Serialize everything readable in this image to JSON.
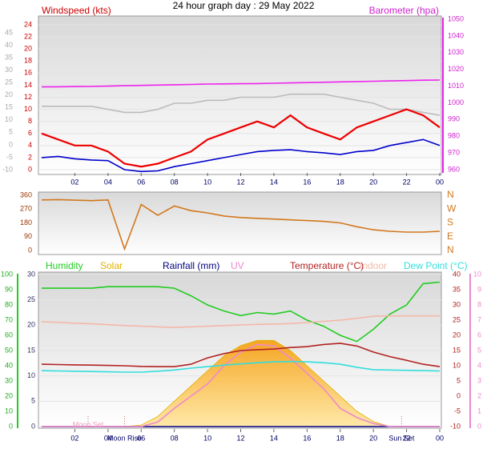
{
  "chart_data": [
    {
      "type": "line",
      "title": "24 hour graph day : 29 May 2022",
      "y_label": "Windspeed (kts)",
      "y2_label": "Barometer (hpa)",
      "xlim": [
        0,
        24
      ],
      "xticks": [
        {
          "value": 2,
          "label": "02"
        },
        {
          "value": 4,
          "label": "04"
        },
        {
          "value": 6,
          "label": "06"
        },
        {
          "value": 8,
          "label": "08"
        },
        10,
        12,
        14,
        16,
        18,
        20,
        22,
        {
          "value": 24,
          "label": "00"
        }
      ],
      "ylim": [
        0,
        24
      ],
      "yticks": [
        0,
        2,
        4,
        6,
        8,
        10,
        12,
        14,
        16,
        18,
        20,
        22,
        24
      ],
      "y3lim": [
        -10,
        45
      ],
      "y3ticks": [
        -10,
        -5,
        0,
        5,
        10,
        15,
        20,
        25,
        30,
        35,
        40,
        45
      ],
      "y2lim": [
        960,
        1050
      ],
      "y2ticks": [
        960,
        970,
        980,
        990,
        1000,
        1010,
        1020,
        1030,
        1040,
        1050
      ],
      "grid": true,
      "x": [
        0,
        1,
        2,
        3,
        4,
        5,
        6,
        7,
        8,
        9,
        10,
        11,
        12,
        13,
        14,
        15,
        16,
        17,
        18,
        19,
        20,
        21,
        22,
        23,
        24
      ],
      "series": [
        {
          "color": "#bbbbbb",
          "axis": "y",
          "values": [
            10.5,
            10.5,
            10.5,
            10.5,
            10,
            9.5,
            9.5,
            10,
            11,
            11,
            11.5,
            11.5,
            12,
            12,
            12,
            12.5,
            12.5,
            12.5,
            12,
            11.5,
            11,
            10,
            10,
            9.5,
            9
          ]
        },
        {
          "color": "#ee0000",
          "axis": "y",
          "values": [
            6,
            5,
            4,
            4,
            3,
            1,
            0.5,
            1,
            2,
            3,
            5,
            6,
            7,
            8,
            7,
            9,
            7,
            6,
            5,
            7,
            8,
            9,
            10,
            9,
            7
          ]
        },
        {
          "color": "#0000cc",
          "axis": "y",
          "values": [
            2,
            2.2,
            1.8,
            1.6,
            1.5,
            0,
            -0.3,
            -0.2,
            0.5,
            1,
            1.5,
            2,
            2.5,
            3,
            3.2,
            3.3,
            3,
            2.8,
            2.5,
            3,
            3.2,
            4,
            4.5,
            5,
            4
          ]
        },
        {
          "color": "#ee22ee",
          "axis": "y2",
          "values": [
            1009.5,
            1009.6,
            1009.7,
            1009.8,
            1010,
            1010.2,
            1010.4,
            1010.6,
            1010.8,
            1011,
            1011.2,
            1011.3,
            1011.4,
            1011.5,
            1011.7,
            1011.9,
            1012.1,
            1012.3,
            1012.5,
            1012.7,
            1012.9,
            1013.1,
            1013.3,
            1013.5,
            1013.6
          ]
        }
      ]
    },
    {
      "type": "line",
      "xlim": [
        0,
        24
      ],
      "ylim": [
        0,
        360
      ],
      "yticks": [
        0,
        90,
        180,
        270,
        360
      ],
      "y2lim": [
        0,
        360
      ],
      "y2ticks": [
        {
          "value": 0,
          "label": "N"
        },
        {
          "value": 90,
          "label": "E"
        },
        {
          "value": 180,
          "label": "S"
        },
        {
          "value": 270,
          "label": "W"
        },
        {
          "value": 360,
          "label": "N"
        }
      ],
      "x": [
        0,
        1,
        2,
        3,
        4,
        5,
        6,
        7,
        8,
        9,
        10,
        11,
        12,
        13,
        14,
        15,
        16,
        17,
        18,
        19,
        20,
        21,
        22,
        23,
        24
      ],
      "series": [
        {
          "color": "#d2781e",
          "axis": "y",
          "values": [
            330,
            332,
            328,
            325,
            330,
            10,
            300,
            230,
            290,
            260,
            245,
            225,
            215,
            210,
            205,
            200,
            195,
            190,
            180,
            155,
            135,
            125,
            120,
            120,
            125
          ]
        }
      ]
    },
    {
      "type": "line",
      "xlim": [
        0,
        24
      ],
      "xticks": [
        {
          "value": 2,
          "label": "02"
        },
        {
          "value": 4,
          "label": "04"
        },
        {
          "value": 6,
          "label": "06"
        },
        {
          "value": 8,
          "label": "08"
        },
        10,
        12,
        14,
        16,
        18,
        20,
        22,
        {
          "value": 24,
          "label": "00"
        }
      ],
      "ylim": [
        0,
        100
      ],
      "yticks": [
        0,
        10,
        20,
        30,
        40,
        50,
        60,
        70,
        80,
        90,
        100
      ],
      "y3lim": [
        0,
        30
      ],
      "y3ticks": [
        0,
        5,
        10,
        15,
        20,
        25,
        30
      ],
      "y2lim": [
        -10,
        40
      ],
      "y2ticks": [
        -10,
        -5,
        0,
        5,
        10,
        15,
        20,
        25,
        30,
        35,
        40
      ],
      "y4lim": [
        0,
        10
      ],
      "y4ticks": [
        0,
        1,
        2,
        3,
        4,
        5,
        6,
        7,
        8,
        9,
        10
      ],
      "grid": true,
      "annotations": [
        {
          "text": "Moon Set",
          "x": 2.8
        },
        {
          "text": "Moon Rise",
          "x": 5
        },
        {
          "text": "Sun Set",
          "x": 21.7
        }
      ],
      "x": [
        0,
        1,
        2,
        3,
        4,
        5,
        6,
        7,
        8,
        9,
        10,
        11,
        12,
        13,
        14,
        15,
        16,
        17,
        18,
        19,
        20,
        21,
        22,
        23,
        24
      ],
      "series": [
        {
          "name": "Humidity",
          "color": "#22cc22",
          "axis": "y",
          "values": [
            91,
            91,
            91,
            91,
            92,
            92,
            92,
            92,
            91,
            86,
            80,
            76,
            73,
            75,
            74,
            76,
            70,
            66,
            60,
            56,
            64,
            74,
            80,
            94,
            95
          ]
        },
        {
          "name": "Solar",
          "color": "#e0b000",
          "axis": "y3",
          "area": true,
          "values": [
            0,
            0,
            0,
            0,
            0,
            0,
            0.3,
            2,
            5,
            8,
            11,
            14,
            16,
            17,
            17,
            15,
            12,
            9,
            6,
            3,
            1,
            0,
            0,
            0,
            0
          ]
        },
        {
          "name": "Rainfall (mm)",
          "color": "#000080",
          "axis": "y3",
          "values": [
            0,
            0,
            0,
            0,
            0,
            0,
            0,
            0,
            0,
            0,
            0,
            0,
            0,
            0,
            0,
            0,
            0,
            0,
            0,
            0,
            0,
            0,
            0,
            0,
            0
          ]
        },
        {
          "name": "UV",
          "color": "#ee88cc",
          "axis": "y4",
          "values": [
            0,
            0,
            0,
            0,
            0,
            0,
            0,
            0.3,
            1.2,
            2,
            2.8,
            4,
            4.9,
            5.4,
            5.3,
            4.5,
            3.5,
            2.5,
            1.2,
            0.6,
            0.2,
            0,
            0,
            0,
            0
          ]
        },
        {
          "name": "Temperature (°C)",
          "color": "#b22222",
          "axis": "y2",
          "values": [
            10.5,
            10.4,
            10.3,
            10.2,
            10.1,
            10,
            9.8,
            9.7,
            9.7,
            10.5,
            12.6,
            14,
            15,
            15.3,
            15.5,
            16,
            16.3,
            17,
            17.4,
            16.5,
            14.5,
            13,
            11.8,
            10.5,
            9.7
          ]
        },
        {
          "name": "Indoor",
          "color": "#f4b8a8",
          "axis": "y2",
          "values": [
            24.5,
            24.3,
            24,
            23.8,
            23.5,
            23.2,
            23,
            22.8,
            22.6,
            22.8,
            23,
            23.2,
            23.4,
            23.6,
            23.7,
            23.9,
            24.2,
            24.6,
            25,
            25.6,
            26.3,
            26.4,
            26.4,
            26.4,
            26.4
          ]
        },
        {
          "name": "Dew Point (°C)",
          "color": "#33dddd",
          "axis": "y2",
          "values": [
            8.4,
            8.3,
            8.2,
            8.1,
            8,
            7.9,
            7.9,
            8.2,
            8.6,
            9.2,
            9.7,
            10.2,
            10.6,
            11,
            11.3,
            11.4,
            11.3,
            11,
            10.5,
            9.5,
            8.7,
            8.6,
            8.5,
            8.4,
            8.3
          ]
        }
      ]
    }
  ]
}
